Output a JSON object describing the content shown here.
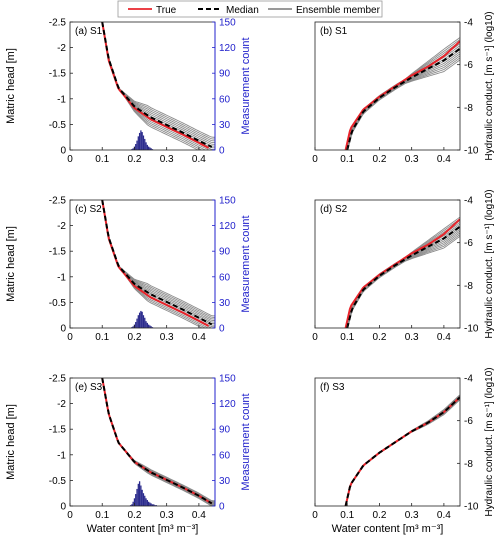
{
  "legend": {
    "items": [
      {
        "label": "True",
        "color": "#e8242b",
        "style": "solid"
      },
      {
        "label": "Median",
        "color": "#000000",
        "style": "dashed"
      },
      {
        "label": "Ensemble member",
        "color": "#8c8c8c",
        "style": "solid"
      }
    ],
    "position": "top-center"
  },
  "colors": {
    "true": "#e8242b",
    "median": "#000000",
    "ensemble": "#8c8c8c",
    "hist": "#2a2a8c",
    "count_axis": "#2222cc"
  },
  "chart_data": [
    {
      "type": "line",
      "panel": "(a) S1",
      "xlabel": "",
      "ylabel": "Matric head [m]",
      "y2label": "Measurement count",
      "xlim": [
        0,
        0.45
      ],
      "ylim": [
        0,
        -2.5
      ],
      "y2lim": [
        0,
        150
      ],
      "xticks": [
        "0",
        "0.1",
        "0.2",
        "0.3",
        "0.4"
      ],
      "yticks": [
        "-2.5",
        "-2",
        "-1.5",
        "-1",
        "-0.5",
        "0"
      ],
      "y2ticks": [
        "0",
        "30",
        "60",
        "90",
        "120",
        "150"
      ],
      "curve_model": "retention",
      "ensemble_spread": 0.09,
      "series": [
        {
          "name": "True",
          "x": [
            0.1,
            0.12,
            0.15,
            0.2,
            0.25,
            0.3,
            0.35,
            0.4,
            0.43
          ],
          "y": [
            -2.5,
            -1.75,
            -1.2,
            -0.82,
            -0.6,
            -0.45,
            -0.3,
            -0.14,
            -0.04
          ]
        },
        {
          "name": "Median",
          "x": [
            0.1,
            0.12,
            0.15,
            0.2,
            0.25,
            0.3,
            0.35,
            0.4,
            0.44
          ],
          "y": [
            -2.5,
            -1.78,
            -1.22,
            -0.85,
            -0.64,
            -0.49,
            -0.34,
            -0.18,
            -0.06
          ]
        }
      ],
      "histogram": {
        "bin_start": 0.19,
        "bin_width": 0.004,
        "counts": [
          1,
          2,
          4,
          7,
          11,
          16,
          20,
          23,
          21,
          17,
          13,
          9,
          6,
          4,
          3,
          2,
          1
        ]
      }
    },
    {
      "type": "line",
      "panel": "(b) S1",
      "xlabel": "",
      "ylabel": "Hydraulic conduct. [m s⁻¹] (log10)",
      "xlim": [
        0,
        0.45
      ],
      "ylim": [
        -10,
        -4
      ],
      "xticks": [
        "0",
        "0.1",
        "0.2",
        "0.3",
        "0.4"
      ],
      "yticks": [
        "-4",
        "-6",
        "-8",
        "-10"
      ],
      "curve_model": "conductivity",
      "ensemble_spread": 0.35,
      "series": [
        {
          "name": "True",
          "x": [
            0.095,
            0.11,
            0.15,
            0.2,
            0.25,
            0.3,
            0.35,
            0.4,
            0.45
          ],
          "y": [
            -10.0,
            -9.0,
            -8.1,
            -7.5,
            -7.0,
            -6.5,
            -6.1,
            -5.6,
            -4.9
          ]
        },
        {
          "name": "Median",
          "x": [
            0.1,
            0.115,
            0.15,
            0.2,
            0.25,
            0.3,
            0.35,
            0.4,
            0.45
          ],
          "y": [
            -10.0,
            -9.1,
            -8.2,
            -7.55,
            -7.05,
            -6.6,
            -6.2,
            -5.8,
            -5.25
          ]
        }
      ]
    },
    {
      "type": "line",
      "panel": "(c) S2",
      "xlabel": "",
      "ylabel": "Matric head [m]",
      "y2label": "Measurement count",
      "xlim": [
        0,
        0.45
      ],
      "ylim": [
        0,
        -2.5
      ],
      "y2lim": [
        0,
        150
      ],
      "xticks": [
        "0",
        "0.1",
        "0.2",
        "0.3",
        "0.4"
      ],
      "yticks": [
        "-2.5",
        "-2",
        "-1.5",
        "-1",
        "-0.5",
        "0"
      ],
      "y2ticks": [
        "0",
        "30",
        "60",
        "90",
        "120",
        "150"
      ],
      "curve_model": "retention",
      "ensemble_spread": 0.08,
      "series": [
        {
          "name": "True",
          "x": [
            0.1,
            0.12,
            0.15,
            0.2,
            0.25,
            0.3,
            0.35,
            0.4,
            0.43
          ],
          "y": [
            -2.5,
            -1.75,
            -1.2,
            -0.82,
            -0.6,
            -0.45,
            -0.3,
            -0.14,
            -0.04
          ]
        },
        {
          "name": "Median",
          "x": [
            0.1,
            0.12,
            0.15,
            0.2,
            0.25,
            0.3,
            0.35,
            0.4,
            0.44
          ],
          "y": [
            -2.5,
            -1.77,
            -1.22,
            -0.86,
            -0.66,
            -0.51,
            -0.36,
            -0.2,
            -0.07
          ]
        }
      ],
      "histogram": {
        "bin_start": 0.19,
        "bin_width": 0.004,
        "counts": [
          1,
          2,
          4,
          7,
          11,
          15,
          18,
          20,
          19,
          15,
          12,
          8,
          6,
          4,
          3,
          2,
          1
        ]
      }
    },
    {
      "type": "line",
      "panel": "(d) S2",
      "xlabel": "",
      "ylabel": "Hydraulic conduct. [m s⁻¹] (log10)",
      "xlim": [
        0,
        0.45
      ],
      "ylim": [
        -10,
        -4
      ],
      "xticks": [
        "0",
        "0.1",
        "0.2",
        "0.3",
        "0.4"
      ],
      "yticks": [
        "-4",
        "-6",
        "-8",
        "-10"
      ],
      "curve_model": "conductivity",
      "ensemble_spread": 0.3,
      "series": [
        {
          "name": "True",
          "x": [
            0.095,
            0.11,
            0.15,
            0.2,
            0.25,
            0.3,
            0.35,
            0.4,
            0.45
          ],
          "y": [
            -10.0,
            -9.0,
            -8.1,
            -7.5,
            -7.0,
            -6.5,
            -6.1,
            -5.6,
            -4.9
          ]
        },
        {
          "name": "Median",
          "x": [
            0.1,
            0.115,
            0.15,
            0.2,
            0.25,
            0.3,
            0.35,
            0.4,
            0.45
          ],
          "y": [
            -10.0,
            -9.1,
            -8.2,
            -7.55,
            -7.05,
            -6.6,
            -6.2,
            -5.8,
            -5.25
          ]
        }
      ]
    },
    {
      "type": "line",
      "panel": "(e) S3",
      "xlabel": "Water content [m³ m⁻³]",
      "ylabel": "Matric head [m]",
      "y2label": "Measurement count",
      "xlim": [
        0,
        0.45
      ],
      "ylim": [
        0,
        -2.5
      ],
      "y2lim": [
        0,
        150
      ],
      "xticks": [
        "0",
        "0.1",
        "0.2",
        "0.3",
        "0.4"
      ],
      "yticks": [
        "-2.5",
        "-2",
        "-1.5",
        "-1",
        "-0.5",
        "0"
      ],
      "y2ticks": [
        "0",
        "30",
        "60",
        "90",
        "120",
        "150"
      ],
      "curve_model": "retention",
      "ensemble_spread": 0.025,
      "series": [
        {
          "name": "True",
          "x": [
            0.1,
            0.12,
            0.15,
            0.2,
            0.25,
            0.3,
            0.35,
            0.4,
            0.44
          ],
          "y": [
            -2.5,
            -1.8,
            -1.24,
            -0.86,
            -0.66,
            -0.51,
            -0.36,
            -0.2,
            -0.05
          ]
        },
        {
          "name": "Median",
          "x": [
            0.1,
            0.12,
            0.15,
            0.2,
            0.25,
            0.3,
            0.35,
            0.4,
            0.44
          ],
          "y": [
            -2.5,
            -1.8,
            -1.24,
            -0.86,
            -0.66,
            -0.51,
            -0.36,
            -0.2,
            -0.05
          ]
        }
      ],
      "histogram": {
        "bin_start": 0.186,
        "bin_width": 0.004,
        "counts": [
          1,
          2,
          5,
          9,
          14,
          20,
          26,
          29,
          24,
          19,
          15,
          12,
          9,
          7,
          5,
          4,
          3,
          2,
          2,
          1,
          1
        ]
      }
    },
    {
      "type": "line",
      "panel": "(f) S3",
      "xlabel": "Water content [m³ m⁻³]",
      "ylabel": "Hydraulic conduct. [m s⁻¹] (log10)",
      "xlim": [
        0,
        0.45
      ],
      "ylim": [
        -10,
        -4
      ],
      "xticks": [
        "0",
        "0.1",
        "0.2",
        "0.3",
        "0.4"
      ],
      "yticks": [
        "-4",
        "-6",
        "-8",
        "-10"
      ],
      "curve_model": "conductivity",
      "ensemble_spread": 0.08,
      "series": [
        {
          "name": "True",
          "x": [
            0.095,
            0.11,
            0.15,
            0.2,
            0.25,
            0.3,
            0.35,
            0.4,
            0.45
          ],
          "y": [
            -10.0,
            -9.0,
            -8.1,
            -7.5,
            -7.0,
            -6.5,
            -6.1,
            -5.6,
            -4.9
          ]
        },
        {
          "name": "Median",
          "x": [
            0.095,
            0.11,
            0.15,
            0.2,
            0.25,
            0.3,
            0.35,
            0.4,
            0.45
          ],
          "y": [
            -10.0,
            -9.0,
            -8.1,
            -7.5,
            -7.0,
            -6.5,
            -6.1,
            -5.6,
            -4.9
          ]
        }
      ]
    }
  ]
}
